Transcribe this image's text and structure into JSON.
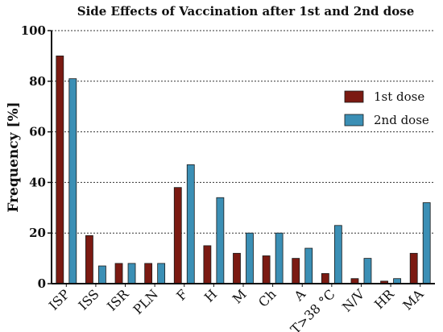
{
  "chart_data": {
    "type": "bar",
    "title": "Side Effects of Vaccination after 1st and 2nd dose",
    "xlabel": "",
    "ylabel": "Frequency [%]",
    "ylim": [
      0,
      100
    ],
    "yticks": [
      0,
      20,
      40,
      60,
      80,
      100
    ],
    "grid": true,
    "legend_position": "top-right",
    "categories": [
      "ISP",
      "ISS",
      "ISR",
      "PLN",
      "F",
      "H",
      "M",
      "Ch",
      "A",
      "T>38 °C",
      "N/V",
      "HR",
      "MA"
    ],
    "series": [
      {
        "name": "1st dose",
        "color": "#7b1a12",
        "values": [
          90,
          19,
          8,
          8,
          38,
          15,
          12,
          11,
          10,
          4,
          2,
          1,
          12
        ]
      },
      {
        "name": "2nd dose",
        "color": "#3b8fb5",
        "values": [
          81,
          7,
          8,
          8,
          47,
          34,
          20,
          20,
          14,
          23,
          10,
          2,
          32
        ]
      }
    ]
  }
}
